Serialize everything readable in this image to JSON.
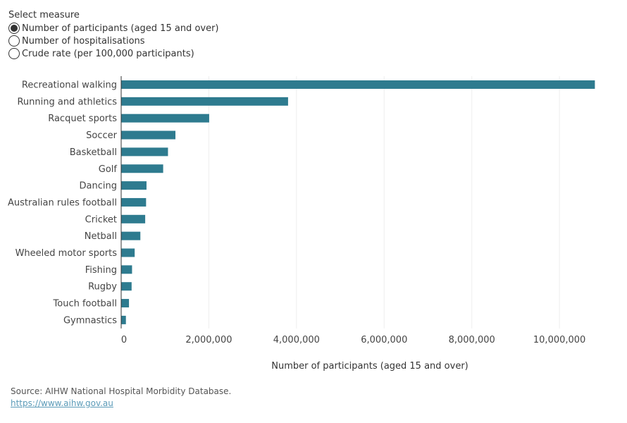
{
  "selector": {
    "title": "Select measure",
    "options": [
      {
        "label": "Number of participants (aged 15 and over)",
        "selected": true
      },
      {
        "label": "Number of hospitalisations",
        "selected": false
      },
      {
        "label": "Crude rate (per 100,000 participants)",
        "selected": false
      }
    ]
  },
  "colors": {
    "bar": "#2e7b8f",
    "axis": "#333333",
    "grid": "#eeeeee"
  },
  "chart_data": {
    "type": "bar",
    "orientation": "horizontal",
    "categories": [
      "Recreational walking",
      "Running and athletics",
      "Racquet sports",
      "Soccer",
      "Basketball",
      "Golf",
      "Dancing",
      "Australian rules football",
      "Cricket",
      "Netball",
      "Wheeled motor sports",
      "Fishing",
      "Rugby",
      "Touch football",
      "Gymnastics"
    ],
    "values": [
      10800000,
      3800000,
      2000000,
      1230000,
      1060000,
      950000,
      570000,
      560000,
      540000,
      430000,
      300000,
      240000,
      230000,
      170000,
      100000
    ],
    "xlabel": "Number of participants (aged 15 and over)",
    "ylabel": "",
    "xlim": [
      0,
      11300000
    ],
    "xticks": [
      0,
      2000000,
      4000000,
      6000000,
      8000000,
      10000000
    ],
    "xtick_labels": [
      "0",
      "2,000,000",
      "4,000,000",
      "6,000,000",
      "8,000,000",
      "10,000,000"
    ],
    "grid": true
  },
  "footer": {
    "source": "Source: AIHW National Hospital Morbidity Database.",
    "link": "https://www.aihw.gov.au"
  }
}
